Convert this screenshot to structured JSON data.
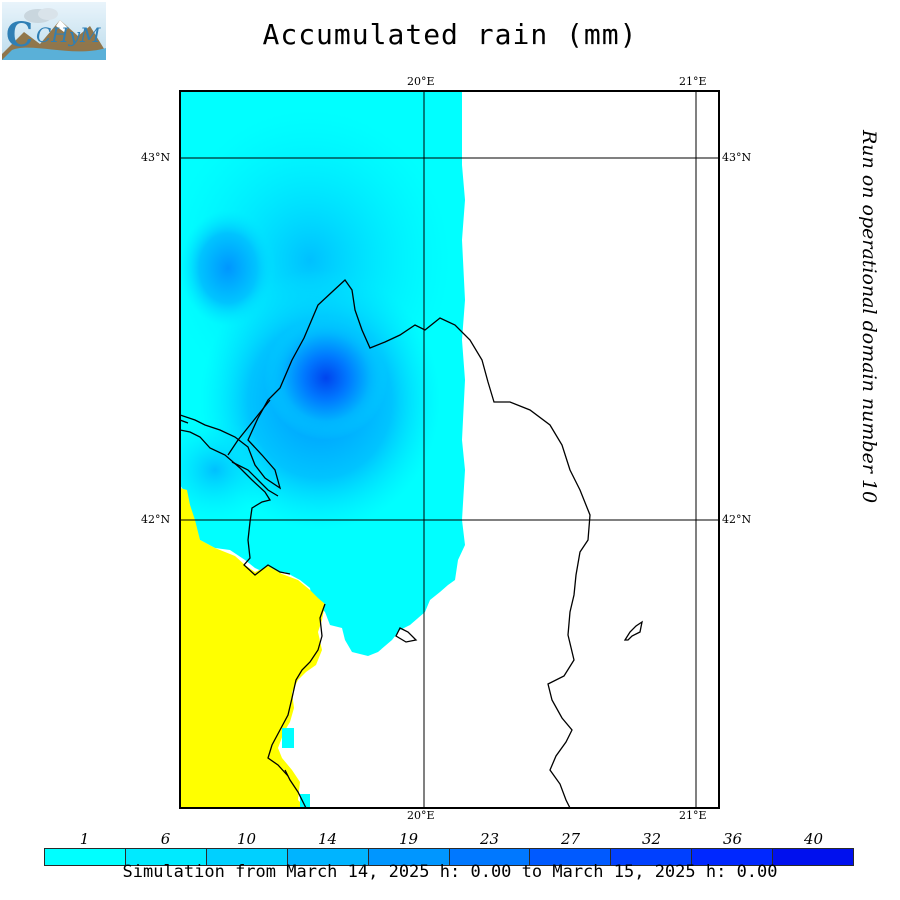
{
  "title": "Accumulated rain (mm)",
  "sidebar_text": "Run on operational domain number 10",
  "footer": "Simulation from March 14, 2025 h: 0.00 to March 15, 2025 h: 0.00",
  "logo": {
    "icon": "chym-logo",
    "text": "CHyM"
  },
  "map": {
    "lon_labels_top": [
      "20°E",
      "21°E"
    ],
    "lon_labels_bottom": [
      "20°E",
      "21°E"
    ],
    "lat_labels_left": [
      "43°N",
      "42°N"
    ],
    "lat_labels_right": [
      "43°N",
      "42°N"
    ],
    "land_color": "#ffffff",
    "sea_color": "#ffff00",
    "outline_color": "#000000"
  },
  "legend": {
    "labels": [
      "1",
      "6",
      "10",
      "14",
      "19",
      "23",
      "27",
      "32",
      "36",
      "40"
    ],
    "colors": [
      "#00ffff",
      "#00eaff",
      "#00d0ff",
      "#00b4ff",
      "#0096ff",
      "#0078ff",
      "#005aff",
      "#0040ff",
      "#0028ff",
      "#0010ee"
    ]
  }
}
